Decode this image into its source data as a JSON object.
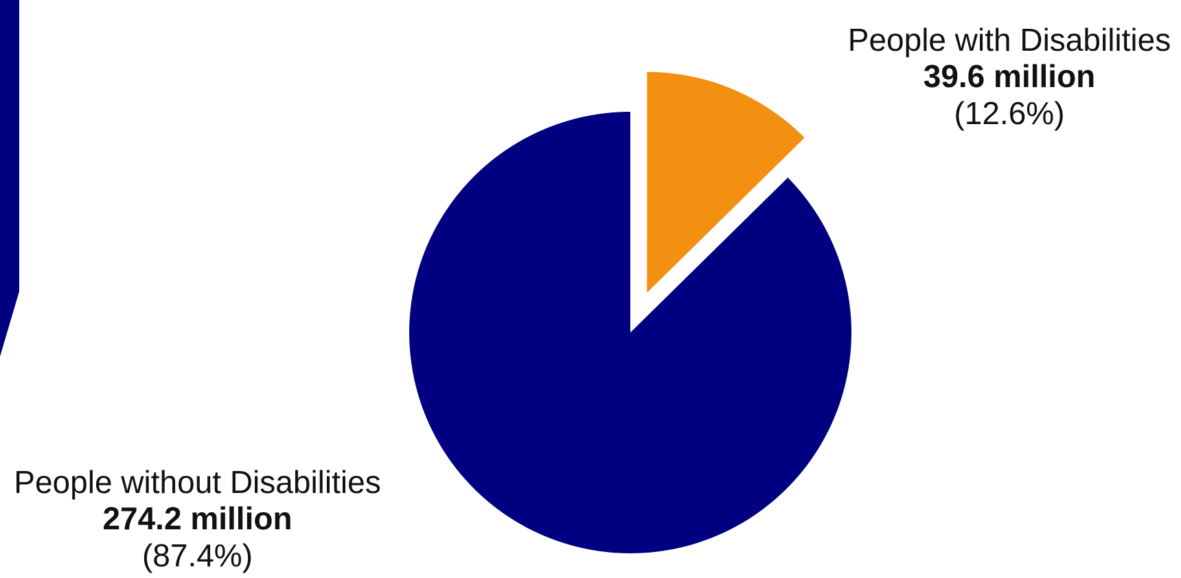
{
  "chart_data": {
    "type": "pie",
    "title": "",
    "slices": [
      {
        "name": "People with Disabilities",
        "value_label": "39.6 million",
        "value": 39.6,
        "unit": "million",
        "percent_label": "(12.6%)",
        "percent": 12.6,
        "color": "#F39012",
        "exploded": true
      },
      {
        "name": "People without Disabilities",
        "value_label": "274.2 million",
        "value": 274.2,
        "unit": "million",
        "percent_label": "(87.4%)",
        "percent": 87.4,
        "color": "#000080",
        "exploded": false
      }
    ]
  },
  "colors": {
    "accent_navy": "#000080",
    "accent_orange": "#F39012"
  }
}
